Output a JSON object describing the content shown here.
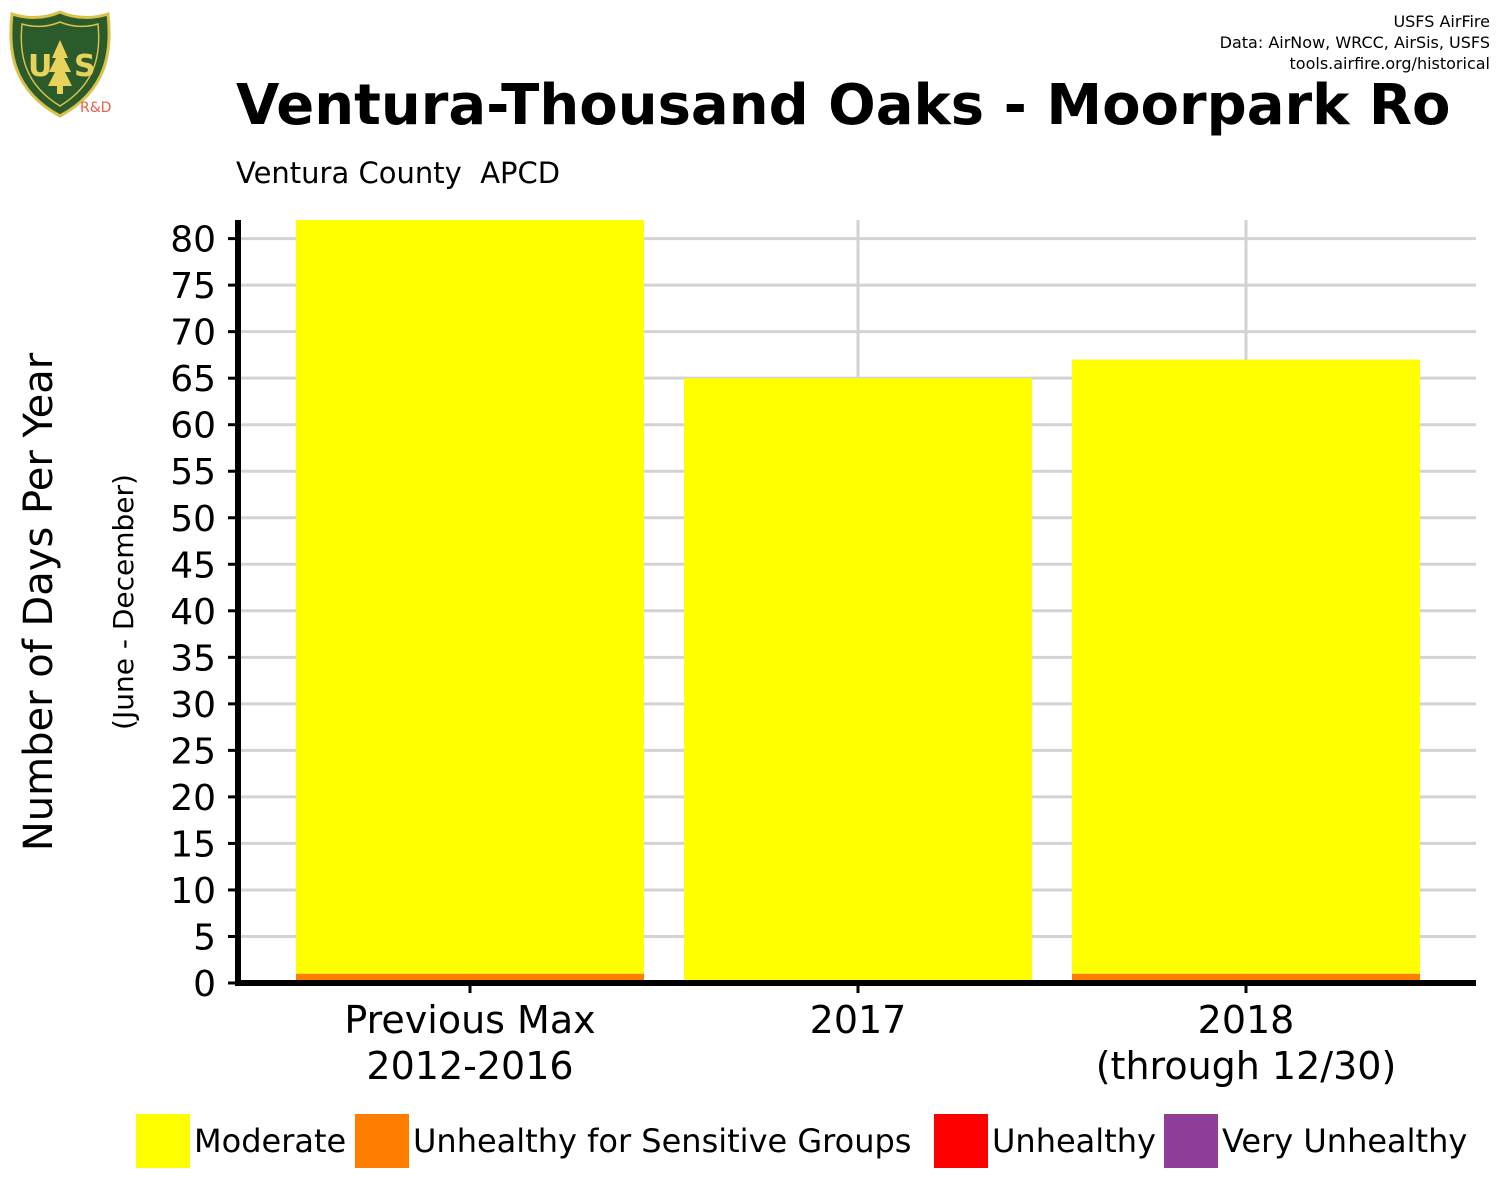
{
  "header": {
    "credit_line1": "USFS AirFire",
    "credit_line2": "Data: AirNow, WRCC, AirSis, USFS",
    "credit_line3": "tools.airfire.org/historical",
    "logo_text": "U S FOREST SERVICE DEPARTMENT OF AGRICULTURE",
    "logo_rd": "R&D"
  },
  "chart_data": {
    "type": "bar",
    "stacked": true,
    "title": "Ventura-Thousand Oaks - Moorpark Ro",
    "subtitle": "Ventura County  APCD",
    "ylabel": "Number of Days Per Year",
    "ylabel_secondary": "(June - December)",
    "xlabel": "",
    "ylim": [
      0,
      82
    ],
    "yticks": [
      0,
      5,
      10,
      15,
      20,
      25,
      30,
      35,
      40,
      45,
      50,
      55,
      60,
      65,
      70,
      75,
      80
    ],
    "grid": true,
    "legend_position": "bottom",
    "categories": [
      [
        "Previous Max",
        "2012-2016"
      ],
      [
        "2017"
      ],
      [
        "2018",
        "(through 12/30)"
      ]
    ],
    "series": [
      {
        "name": "Unhealthy for Sensitive Groups",
        "color": "#ff7e00",
        "values": [
          1,
          0,
          1
        ]
      },
      {
        "name": "Unhealthy",
        "color": "#ff0000",
        "values": [
          0,
          0,
          0
        ]
      },
      {
        "name": "Very Unhealthy",
        "color": "#8f3f97",
        "values": [
          0,
          0,
          0
        ]
      },
      {
        "name": "Moderate",
        "color": "#ffff00",
        "values": [
          81,
          65,
          66
        ]
      }
    ],
    "legend": [
      {
        "name": "Moderate",
        "color": "#ffff00"
      },
      {
        "name": "Unhealthy for Sensitive Groups",
        "color": "#ff7e00"
      },
      {
        "name": "Unhealthy",
        "color": "#ff0000"
      },
      {
        "name": "Very Unhealthy",
        "color": "#8f3f97"
      }
    ]
  }
}
